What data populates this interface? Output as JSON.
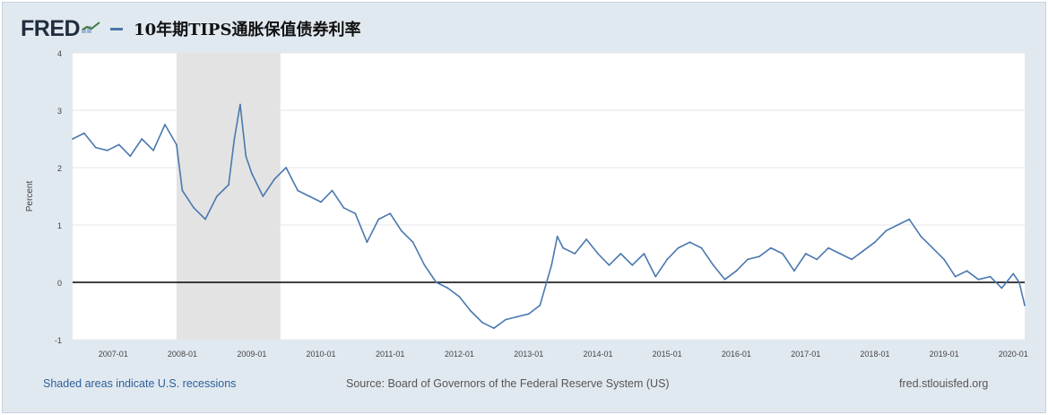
{
  "header": {
    "logo": "FRED",
    "title": "10年期TIPS通胀保值债券利率"
  },
  "footer": {
    "recession_note": "Shaded areas indicate U.S. recessions",
    "source": "Source: Board of Governors of the Federal Reserve System (US)",
    "site": "fred.stlouisfed.org"
  },
  "colors": {
    "line": "#4a78b0",
    "recession": "#e3e3e3",
    "background": "#e1e9f0",
    "zero_line": "#000000"
  },
  "icons": [
    "fred-logo-chart-icon"
  ],
  "chart_data": {
    "type": "line",
    "title": "10年期TIPS通胀保值债券利率",
    "ylabel": "Percent",
    "xlabel": "",
    "ylim": [
      -1,
      4
    ],
    "xlim": [
      "2006-06-01",
      "2020-03-01"
    ],
    "yticks": [
      "-1",
      "0",
      "1",
      "2",
      "3",
      "4"
    ],
    "xticks": [
      "2007-01",
      "2008-01",
      "2009-01",
      "2010-01",
      "2011-01",
      "2012-01",
      "2013-01",
      "2014-01",
      "2015-01",
      "2016-01",
      "2017-01",
      "2018-01",
      "2019-01",
      "2020-01"
    ],
    "grid": true,
    "reference_line": 0,
    "recessions": [
      {
        "start": "2007-12-01",
        "end": "2009-06-01"
      }
    ],
    "series": [
      {
        "x": [
          "2006-06",
          "2006-08",
          "2006-10",
          "2006-12",
          "2007-02",
          "2007-04",
          "2007-06",
          "2007-08",
          "2007-10",
          "2007-12",
          "2008-01",
          "2008-03",
          "2008-05",
          "2008-07",
          "2008-09",
          "2008-10",
          "2008-11",
          "2008-12",
          "2009-01",
          "2009-03",
          "2009-05",
          "2009-07",
          "2009-09",
          "2009-11",
          "2010-01",
          "2010-03",
          "2010-05",
          "2010-07",
          "2010-09",
          "2010-11",
          "2011-01",
          "2011-03",
          "2011-05",
          "2011-07",
          "2011-09",
          "2011-11",
          "2012-01",
          "2012-03",
          "2012-05",
          "2012-07",
          "2012-09",
          "2012-11",
          "2013-01",
          "2013-03",
          "2013-05",
          "2013-06",
          "2013-07",
          "2013-09",
          "2013-11",
          "2014-01",
          "2014-03",
          "2014-05",
          "2014-07",
          "2014-09",
          "2014-11",
          "2015-01",
          "2015-03",
          "2015-05",
          "2015-07",
          "2015-09",
          "2015-11",
          "2016-01",
          "2016-03",
          "2016-05",
          "2016-07",
          "2016-09",
          "2016-11",
          "2017-01",
          "2017-03",
          "2017-05",
          "2017-07",
          "2017-09",
          "2017-11",
          "2018-01",
          "2018-03",
          "2018-05",
          "2018-07",
          "2018-09",
          "2018-11",
          "2019-01",
          "2019-03",
          "2019-05",
          "2019-07",
          "2019-09",
          "2019-11",
          "2020-01",
          "2020-02",
          "2020-03"
        ],
        "values": [
          2.5,
          2.6,
          2.35,
          2.3,
          2.4,
          2.2,
          2.5,
          2.3,
          2.75,
          2.4,
          1.6,
          1.3,
          1.1,
          1.5,
          1.7,
          2.5,
          3.1,
          2.2,
          1.9,
          1.5,
          1.8,
          2.0,
          1.6,
          1.5,
          1.4,
          1.6,
          1.3,
          1.2,
          0.7,
          1.1,
          1.2,
          0.9,
          0.7,
          0.3,
          0.0,
          -0.1,
          -0.25,
          -0.5,
          -0.7,
          -0.8,
          -0.65,
          -0.6,
          -0.55,
          -0.4,
          0.3,
          0.8,
          0.6,
          0.5,
          0.75,
          0.5,
          0.3,
          0.5,
          0.3,
          0.5,
          0.1,
          0.4,
          0.6,
          0.7,
          0.6,
          0.3,
          0.05,
          0.2,
          0.4,
          0.45,
          0.6,
          0.5,
          0.2,
          0.5,
          0.4,
          0.6,
          0.5,
          0.4,
          0.55,
          0.7,
          0.9,
          1.0,
          1.1,
          0.8,
          0.6,
          0.4,
          0.1,
          0.2,
          0.05,
          0.1,
          -0.1,
          0.15,
          0.0,
          -0.4
        ]
      }
    ]
  }
}
